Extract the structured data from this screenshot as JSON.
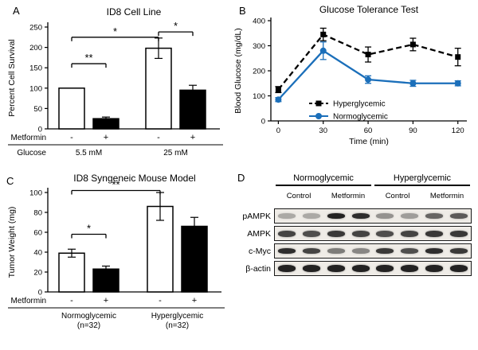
{
  "panels": {
    "A": {
      "letter": "A"
    },
    "B": {
      "letter": "B"
    },
    "C": {
      "letter": "C"
    },
    "D": {
      "letter": "D"
    }
  },
  "colors": {
    "normoglycemic_blue": "#1b6fba",
    "hyperglycemic_black": "#000000",
    "bar_open_fill": "#ffffff",
    "bar_solid_fill": "#000000"
  },
  "chart_data": [
    {
      "panel": "A",
      "type": "bar",
      "title": "ID8 Cell Line",
      "ylabel": "Percent Cell Survival",
      "ylim": [
        0,
        250
      ],
      "yticks": [
        0,
        50,
        100,
        150,
        200,
        250
      ],
      "categories": [
        "Glucose 5.5 mM / Metformin -",
        "Glucose 5.5 mM / Metformin +",
        "Glucose 25 mM / Metformin -",
        "Glucose 25 mM / Metformin +"
      ],
      "values": [
        100,
        25,
        198,
        95
      ],
      "errors": [
        0,
        4,
        25,
        12
      ],
      "fills": [
        "#ffffff",
        "#000000",
        "#ffffff",
        "#000000"
      ],
      "row_label": "Metformin",
      "row_values": [
        "-",
        "+",
        "-",
        "+"
      ],
      "group_row_label": "Glucose",
      "groups": [
        {
          "label": "5.5 mM",
          "span": [
            0,
            1
          ]
        },
        {
          "label": "25 mM",
          "span": [
            2,
            3
          ]
        }
      ],
      "significance": [
        {
          "from": 0,
          "to": 1,
          "label": "**",
          "y": 160
        },
        {
          "from": 0,
          "to": 2,
          "label": "*",
          "y": 225
        },
        {
          "from": 2,
          "to": 3,
          "label": "*",
          "y": 238
        }
      ]
    },
    {
      "panel": "B",
      "type": "line",
      "title": "Glucose Tolerance Test",
      "xlabel": "Time (min)",
      "ylabel": "Blood Glucose (mg/dL)",
      "xlim": [
        -5,
        126
      ],
      "ylim": [
        0,
        400
      ],
      "xticks": [
        0,
        30,
        60,
        90,
        120
      ],
      "yticks": [
        0,
        100,
        200,
        300,
        400
      ],
      "x": [
        0,
        30,
        60,
        90,
        120
      ],
      "series": [
        {
          "name": "Hyperglycemic",
          "values": [
            125,
            345,
            265,
            305,
            255
          ],
          "errors": [
            12,
            25,
            30,
            25,
            35
          ],
          "color": "#000000",
          "dash": "7 4",
          "marker": "square"
        },
        {
          "name": "Normoglycemic",
          "values": [
            85,
            280,
            165,
            150,
            150
          ],
          "errors": [
            8,
            35,
            15,
            12,
            10
          ],
          "color": "#1b6fba",
          "dash": "",
          "marker": "circle"
        }
      ],
      "legend_position": "inside-bottom"
    },
    {
      "panel": "C",
      "type": "bar",
      "title": "ID8 Syngeneic Mouse Model",
      "ylabel": "Tumor Weight (mg)",
      "ylim": [
        0,
        100
      ],
      "yticks": [
        0,
        20,
        40,
        60,
        80,
        100
      ],
      "categories": [
        "Normoglycemic / Metformin -",
        "Normoglycemic / Metformin +",
        "Hyperglycemic / Metformin -",
        "Hyperglycemic / Metformin +"
      ],
      "values": [
        39,
        23,
        86,
        66
      ],
      "errors": [
        4,
        3,
        14,
        9
      ],
      "fills": [
        "#ffffff",
        "#000000",
        "#ffffff",
        "#000000"
      ],
      "row_label": "Metformin",
      "row_values": [
        "-",
        "+",
        "-",
        "+"
      ],
      "group_row_label": "",
      "groups": [
        {
          "label": "Normoglycemic",
          "sub": "(n=32)",
          "span": [
            0,
            1
          ]
        },
        {
          "label": "Hyperglycemic",
          "sub": "(n=32)",
          "span": [
            2,
            3
          ]
        }
      ],
      "significance": [
        {
          "from": 0,
          "to": 1,
          "label": "*",
          "y": 58
        },
        {
          "from": 0,
          "to": 2,
          "label": "**",
          "y": 102
        }
      ]
    }
  ],
  "blot": {
    "groups": [
      {
        "label": "Normoglycemic"
      },
      {
        "label": "Hyperglycemic"
      }
    ],
    "lanes": [
      "Control",
      "Metformin",
      "Control",
      "Metformin"
    ],
    "rows": [
      {
        "label": "pAMPK",
        "bands": [
          0.3,
          0.3,
          0.9,
          0.85,
          0.4,
          0.35,
          0.6,
          0.65
        ]
      },
      {
        "label": "AMPK",
        "bands": [
          0.75,
          0.7,
          0.8,
          0.75,
          0.7,
          0.75,
          0.8,
          0.8
        ]
      },
      {
        "label": "c-Myc",
        "bands": [
          0.85,
          0.75,
          0.5,
          0.45,
          0.8,
          0.7,
          0.85,
          0.8
        ]
      },
      {
        "label": "β-actin",
        "bands": [
          0.9,
          0.9,
          0.9,
          0.9,
          0.9,
          0.9,
          0.9,
          0.9
        ]
      }
    ]
  }
}
